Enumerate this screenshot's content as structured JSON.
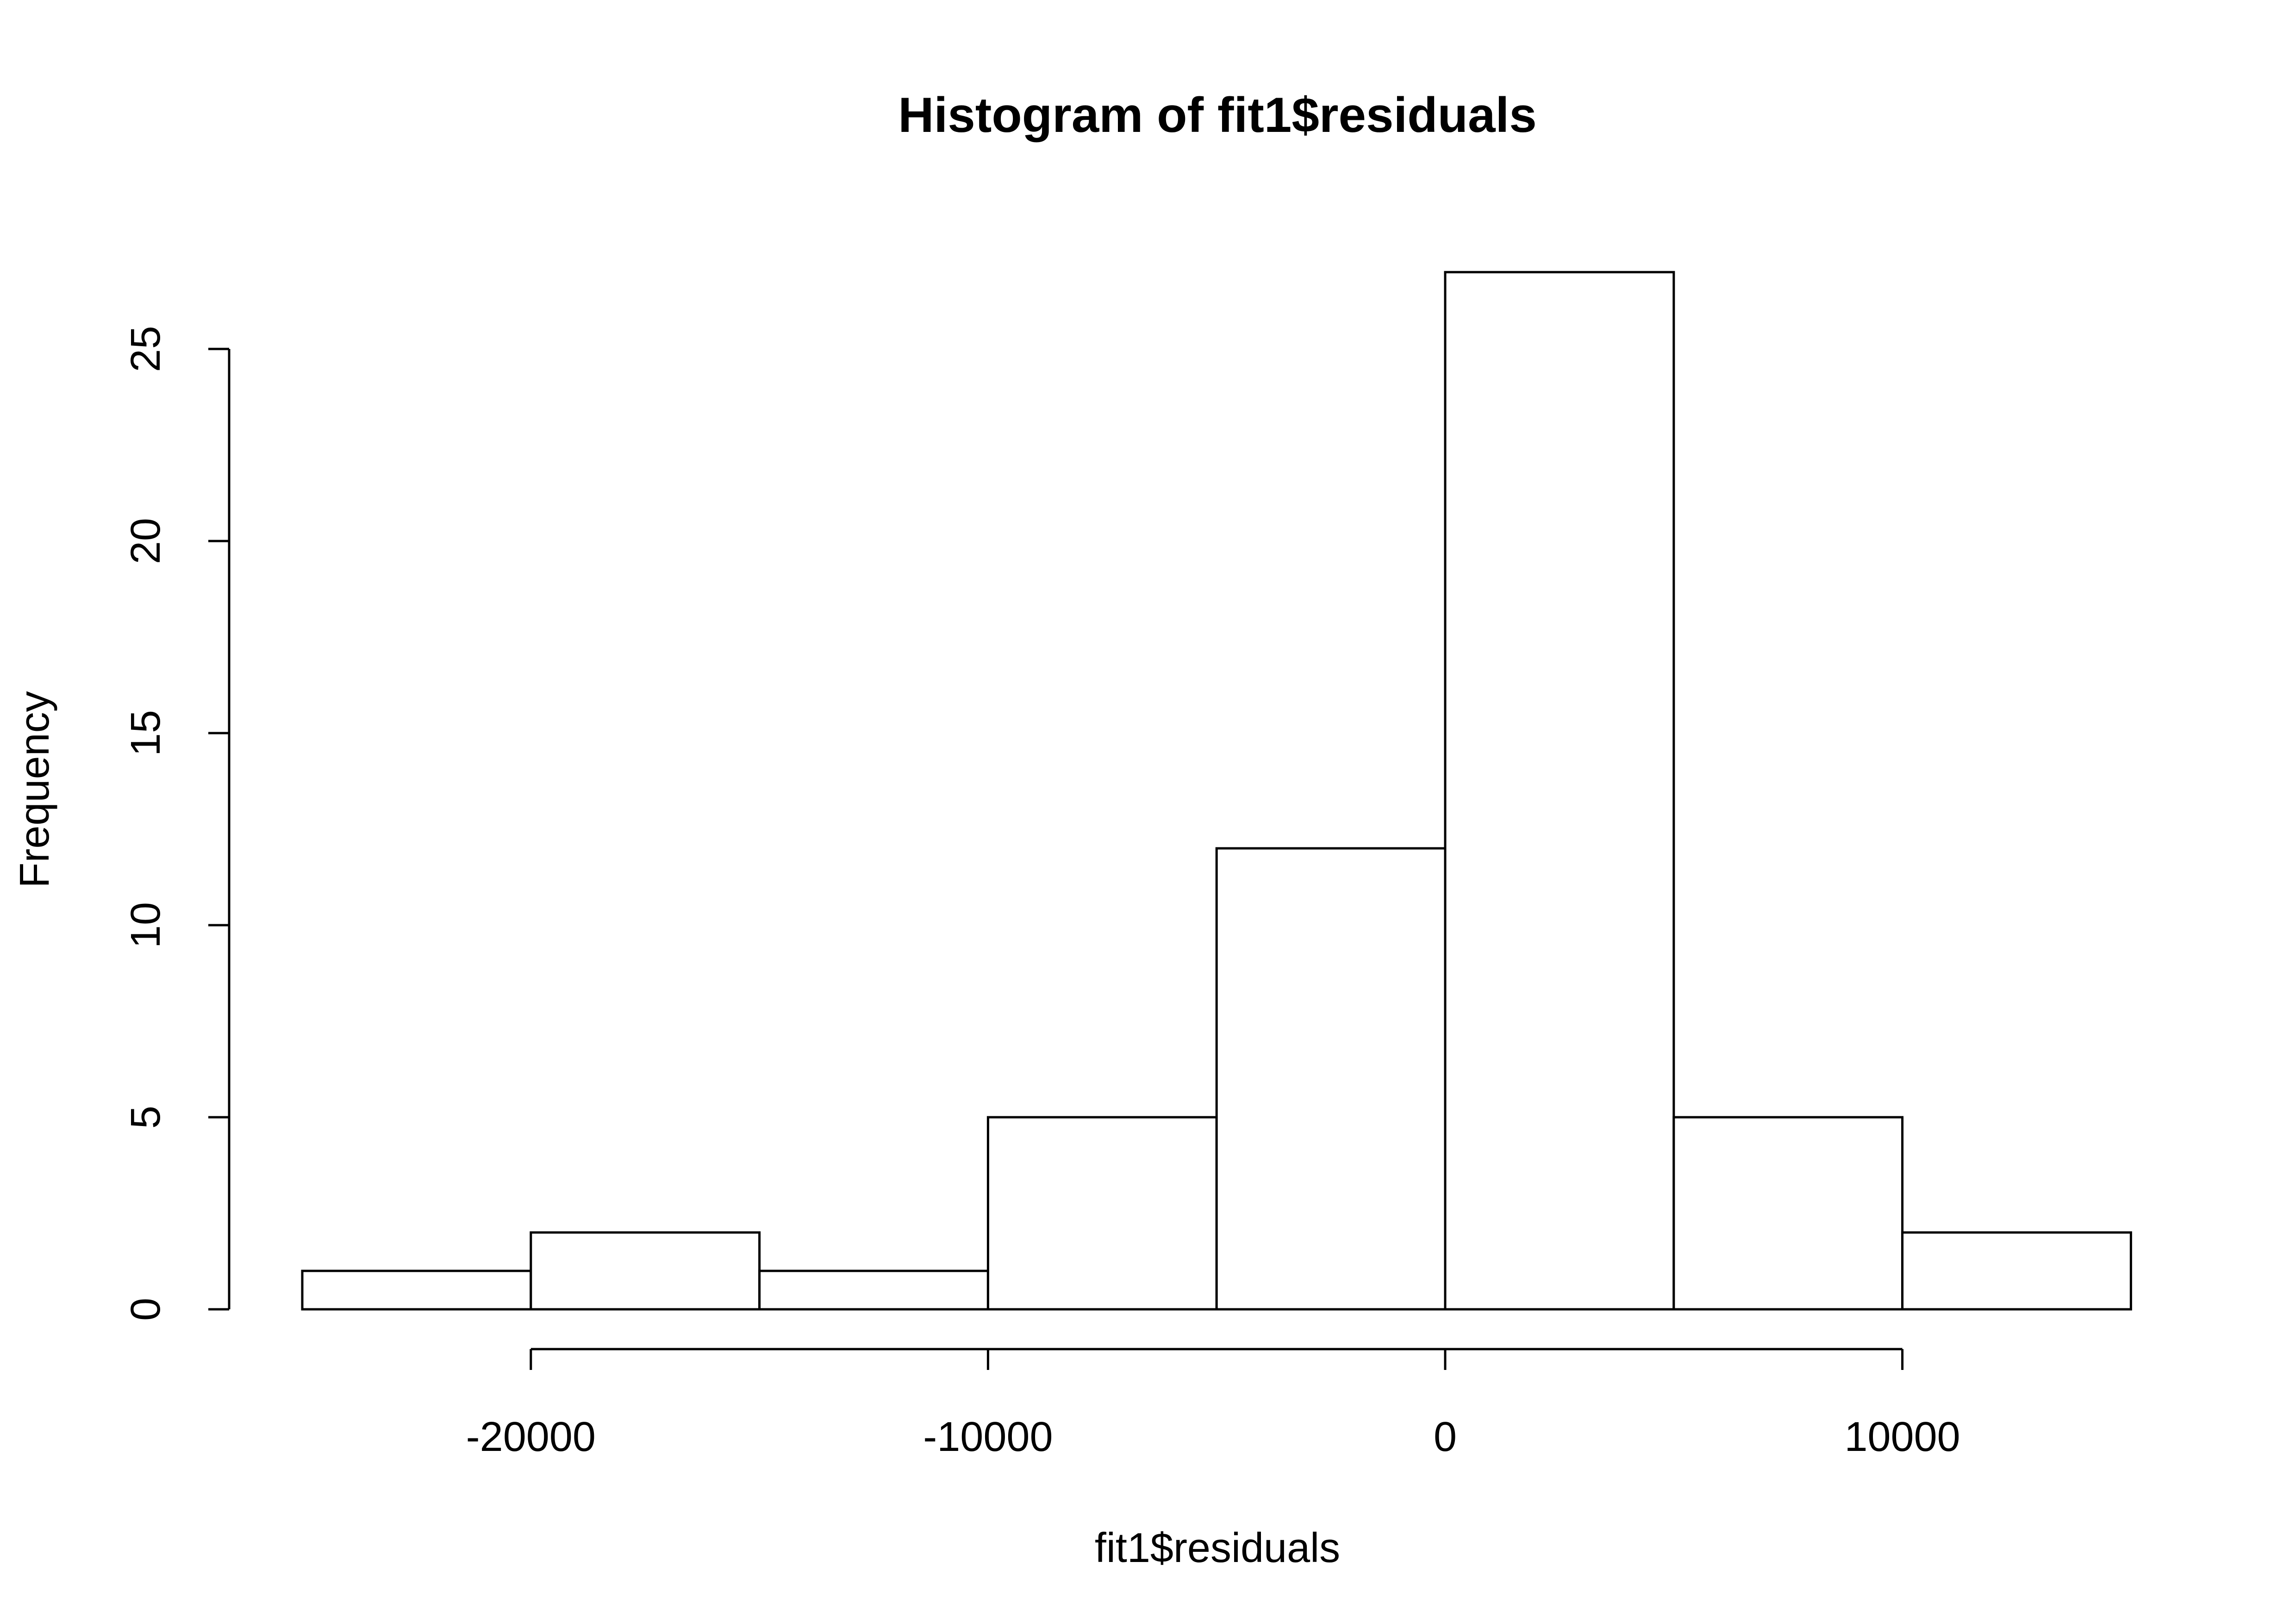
{
  "chart_data": {
    "type": "bar",
    "title": "Histogram of fit1$residuals",
    "xlabel": "fit1$residuals",
    "ylabel": "Frequency",
    "bins": [
      {
        "from": -25000,
        "to": -20000,
        "count": 1
      },
      {
        "from": -20000,
        "to": -15000,
        "count": 2
      },
      {
        "from": -15000,
        "to": -10000,
        "count": 1
      },
      {
        "from": -10000,
        "to": -5000,
        "count": 5
      },
      {
        "from": -5000,
        "to": 0,
        "count": 12
      },
      {
        "from": 0,
        "to": 5000,
        "count": 27
      },
      {
        "from": 5000,
        "to": 10000,
        "count": 5
      },
      {
        "from": 10000,
        "to": 15000,
        "count": 2
      }
    ],
    "xticks": [
      -20000,
      -10000,
      0,
      10000
    ],
    "xtick_labels": [
      "-20000",
      "-10000",
      "0",
      "10000"
    ],
    "yticks": [
      0,
      5,
      10,
      15,
      20,
      25
    ],
    "ytick_labels": [
      "0",
      "5",
      "10",
      "15",
      "20",
      "25"
    ],
    "xlim": [
      -25000,
      15000
    ],
    "ylim": [
      0,
      27
    ],
    "grid": false,
    "legend": "none",
    "colors": {
      "bar_fill": "#ffffff",
      "bar_stroke": "#000000",
      "axis": "#000000",
      "background": "#ffffff"
    }
  }
}
